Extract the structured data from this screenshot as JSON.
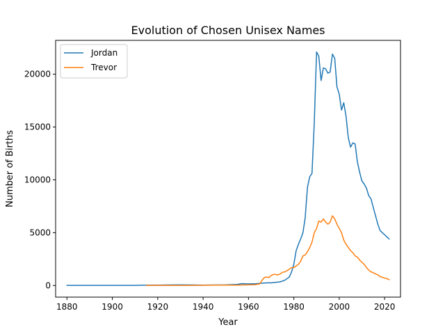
{
  "chart_data": {
    "type": "line",
    "title": "Evolution of Chosen Unisex Names",
    "xlabel": "Year",
    "ylabel": "Number of Births",
    "xlim": [
      1875,
      2027
    ],
    "ylim": [
      -1100,
      23200
    ],
    "xticks": [
      1880,
      1900,
      1920,
      1940,
      1960,
      1980,
      2000,
      2020
    ],
    "yticks": [
      0,
      5000,
      10000,
      15000,
      20000
    ],
    "grid": false,
    "legend": "top-left",
    "series": [
      {
        "name": "Jordan",
        "color": "#1f77b4",
        "points": [
          [
            1880,
            10
          ],
          [
            1885,
            15
          ],
          [
            1890,
            10
          ],
          [
            1895,
            15
          ],
          [
            1900,
            10
          ],
          [
            1905,
            10
          ],
          [
            1910,
            15
          ],
          [
            1915,
            30
          ],
          [
            1920,
            40
          ],
          [
            1925,
            50
          ],
          [
            1930,
            60
          ],
          [
            1935,
            50
          ],
          [
            1940,
            40
          ],
          [
            1945,
            50
          ],
          [
            1950,
            60
          ],
          [
            1955,
            100
          ],
          [
            1957,
            180
          ],
          [
            1960,
            150
          ],
          [
            1963,
            170
          ],
          [
            1965,
            200
          ],
          [
            1968,
            250
          ],
          [
            1970,
            250
          ],
          [
            1972,
            300
          ],
          [
            1974,
            350
          ],
          [
            1976,
            500
          ],
          [
            1978,
            800
          ],
          [
            1979,
            1300
          ],
          [
            1980,
            2000
          ],
          [
            1981,
            3300
          ],
          [
            1982,
            3900
          ],
          [
            1983,
            4400
          ],
          [
            1984,
            5000
          ],
          [
            1985,
            6400
          ],
          [
            1986,
            9300
          ],
          [
            1987,
            10300
          ],
          [
            1988,
            10600
          ],
          [
            1989,
            15400
          ],
          [
            1990,
            22100
          ],
          [
            1991,
            21700
          ],
          [
            1992,
            19400
          ],
          [
            1993,
            20600
          ],
          [
            1994,
            20500
          ],
          [
            1995,
            20100
          ],
          [
            1996,
            20200
          ],
          [
            1997,
            21900
          ],
          [
            1998,
            21500
          ],
          [
            1999,
            18800
          ],
          [
            2000,
            18100
          ],
          [
            2001,
            16600
          ],
          [
            2002,
            17300
          ],
          [
            2003,
            16000
          ],
          [
            2004,
            14000
          ],
          [
            2005,
            13100
          ],
          [
            2006,
            13500
          ],
          [
            2007,
            13400
          ],
          [
            2008,
            11700
          ],
          [
            2009,
            10700
          ],
          [
            2010,
            9900
          ],
          [
            2011,
            9600
          ],
          [
            2012,
            9200
          ],
          [
            2013,
            8500
          ],
          [
            2014,
            8200
          ],
          [
            2015,
            7400
          ],
          [
            2016,
            6600
          ],
          [
            2017,
            5800
          ],
          [
            2018,
            5200
          ],
          [
            2019,
            5000
          ],
          [
            2020,
            4800
          ],
          [
            2021,
            4600
          ],
          [
            2022,
            4400
          ]
        ]
      },
      {
        "name": "Trevor",
        "color": "#ff7f0e",
        "points": [
          [
            1915,
            10
          ],
          [
            1920,
            10
          ],
          [
            1925,
            10
          ],
          [
            1930,
            15
          ],
          [
            1935,
            15
          ],
          [
            1940,
            20
          ],
          [
            1945,
            30
          ],
          [
            1950,
            30
          ],
          [
            1955,
            40
          ],
          [
            1960,
            60
          ],
          [
            1963,
            80
          ],
          [
            1965,
            150
          ],
          [
            1966,
            500
          ],
          [
            1967,
            750
          ],
          [
            1968,
            800
          ],
          [
            1969,
            750
          ],
          [
            1970,
            950
          ],
          [
            1971,
            1050
          ],
          [
            1972,
            1050
          ],
          [
            1973,
            1000
          ],
          [
            1974,
            1100
          ],
          [
            1975,
            1250
          ],
          [
            1976,
            1300
          ],
          [
            1977,
            1400
          ],
          [
            1978,
            1550
          ],
          [
            1979,
            1700
          ],
          [
            1980,
            1700
          ],
          [
            1981,
            1850
          ],
          [
            1982,
            2000
          ],
          [
            1983,
            2300
          ],
          [
            1984,
            2800
          ],
          [
            1985,
            2900
          ],
          [
            1986,
            3200
          ],
          [
            1987,
            3600
          ],
          [
            1988,
            4100
          ],
          [
            1989,
            5000
          ],
          [
            1990,
            5400
          ],
          [
            1991,
            6100
          ],
          [
            1992,
            6000
          ],
          [
            1993,
            6300
          ],
          [
            1994,
            6000
          ],
          [
            1995,
            5800
          ],
          [
            1996,
            6000
          ],
          [
            1997,
            6600
          ],
          [
            1998,
            6300
          ],
          [
            1999,
            5800
          ],
          [
            2000,
            5400
          ],
          [
            2001,
            5000
          ],
          [
            2002,
            4300
          ],
          [
            2003,
            3900
          ],
          [
            2004,
            3600
          ],
          [
            2005,
            3300
          ],
          [
            2006,
            3100
          ],
          [
            2007,
            2800
          ],
          [
            2008,
            2700
          ],
          [
            2009,
            2400
          ],
          [
            2010,
            2200
          ],
          [
            2011,
            2000
          ],
          [
            2012,
            1700
          ],
          [
            2013,
            1450
          ],
          [
            2014,
            1300
          ],
          [
            2015,
            1200
          ],
          [
            2016,
            1100
          ],
          [
            2017,
            1000
          ],
          [
            2018,
            850
          ],
          [
            2019,
            780
          ],
          [
            2020,
            700
          ],
          [
            2021,
            650
          ],
          [
            2022,
            550
          ]
        ]
      }
    ]
  }
}
